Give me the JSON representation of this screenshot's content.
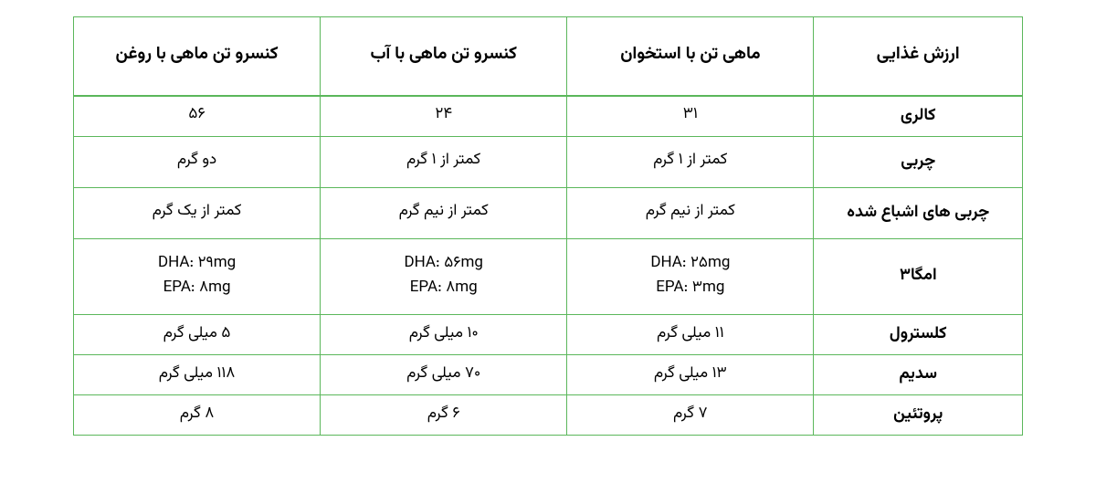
{
  "table": {
    "border_color": "#5bb75b",
    "background_color": "#ffffff",
    "text_color": "#000000",
    "header_fontsize": 19,
    "body_fontsize": 17,
    "columns": [
      {
        "key": "label",
        "header": "ارزش غذایی"
      },
      {
        "key": "bone",
        "header": "ماهی تن با استخوان"
      },
      {
        "key": "water",
        "header": "کنسرو تن ماهی با آب"
      },
      {
        "key": "oil",
        "header": "کنسرو تن ماهی با روغن"
      }
    ],
    "rows": [
      {
        "label": "کالری",
        "bone": "۳۱",
        "water": "۲۴",
        "oil": "۵۶"
      },
      {
        "label": "چربی",
        "bone": "کمتر از ۱ گرم",
        "water": "کمتر از ۱ گرم",
        "oil": "دو گرم"
      },
      {
        "label": "چربی های اشباع شده",
        "bone": "کمتر از نیم گرم",
        "water": "کمتر از نیم گرم",
        "oil": "کمتر از یک گرم"
      },
      {
        "label": "امگا۳",
        "bone_dha": "DHA: ۲۵mg",
        "bone_epa": "EPA: ۳mg",
        "water_dha": "DHA: ۵۶mg",
        "water_epa": "EPA: ۸mg",
        "oil_dha": "DHA: ۲۹mg",
        "oil_epa": "EPA: ۸mg"
      },
      {
        "label": "کلسترول",
        "bone": "۱۱ میلی گرم",
        "water": "۱۰ میلی گرم",
        "oil": "۵ میلی گرم"
      },
      {
        "label": "سدیم",
        "bone": "۱۳ میلی گرم",
        "water": "۷۰ میلی گرم",
        "oil": "۱۱۸ میلی گرم"
      },
      {
        "label": "پروتئین",
        "bone": "۷ گرم",
        "water": "۶ گرم",
        "oil": "۸ گرم"
      }
    ]
  }
}
